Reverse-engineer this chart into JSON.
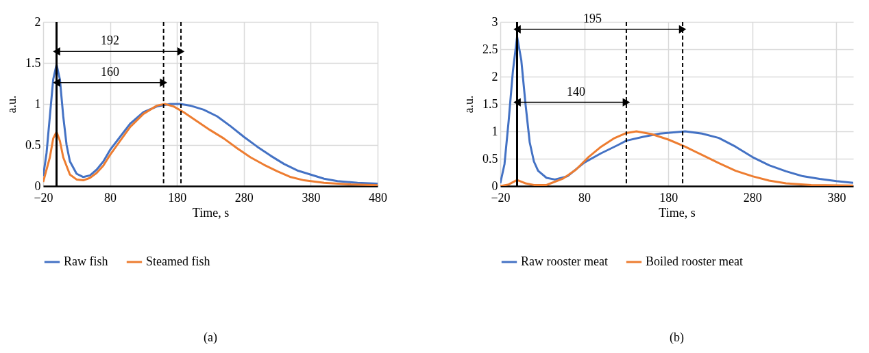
{
  "chart_data": [
    {
      "type": "line",
      "xlabel": "Time, s",
      "ylabel": "a.u.",
      "xlim": [
        -20,
        480
      ],
      "ylim": [
        0,
        2
      ],
      "xticks": [
        -20,
        80,
        180,
        280,
        380,
        480
      ],
      "yticks": [
        0,
        0.5,
        1,
        1.5,
        2
      ],
      "grid": true,
      "legend": "bottom",
      "series": [
        {
          "name": "Raw fish",
          "color": "#4472c4",
          "x": [
            -20,
            -15,
            -10,
            -5,
            0,
            5,
            10,
            15,
            20,
            30,
            40,
            50,
            60,
            70,
            80,
            95,
            110,
            130,
            150,
            170,
            185,
            200,
            220,
            240,
            260,
            280,
            300,
            320,
            340,
            360,
            380,
            400,
            420,
            450,
            480
          ],
          "values": [
            0.12,
            0.4,
            0.85,
            1.3,
            1.48,
            1.3,
            0.85,
            0.5,
            0.3,
            0.15,
            0.11,
            0.13,
            0.2,
            0.3,
            0.44,
            0.6,
            0.76,
            0.9,
            0.97,
            1.0,
            1.0,
            0.98,
            0.93,
            0.85,
            0.73,
            0.6,
            0.48,
            0.37,
            0.27,
            0.19,
            0.14,
            0.09,
            0.06,
            0.04,
            0.03
          ]
        },
        {
          "name": "Steamed fish",
          "color": "#ed7d31",
          "x": [
            -20,
            -10,
            -5,
            0,
            5,
            10,
            20,
            30,
            40,
            50,
            60,
            70,
            80,
            95,
            110,
            130,
            150,
            162,
            175,
            190,
            210,
            230,
            250,
            270,
            290,
            310,
            330,
            350,
            370,
            400,
            440,
            480
          ],
          "values": [
            0.05,
            0.35,
            0.58,
            0.66,
            0.55,
            0.35,
            0.14,
            0.08,
            0.07,
            0.1,
            0.16,
            0.25,
            0.38,
            0.55,
            0.72,
            0.88,
            0.98,
            1.0,
            0.97,
            0.9,
            0.79,
            0.68,
            0.58,
            0.46,
            0.35,
            0.26,
            0.18,
            0.11,
            0.07,
            0.04,
            0.02,
            0.01
          ]
        }
      ],
      "ref_lines": [
        {
          "axis": "x",
          "value": 0,
          "color": "#000000",
          "line_style": "solid"
        },
        {
          "axis": "x",
          "value": 186,
          "color": "#000000",
          "line_style": "dashed"
        },
        {
          "axis": "x",
          "value": 160,
          "color": "#000000",
          "line_style": "dashed"
        }
      ],
      "annotations": [
        "192",
        "160",
        "(a)"
      ]
    },
    {
      "type": "line",
      "xlabel": "Time, s",
      "ylabel": "a.u.",
      "xlim": [
        -20,
        400
      ],
      "ylim": [
        0,
        3
      ],
      "xticks": [
        -20,
        80,
        180,
        280,
        380
      ],
      "yticks": [
        0,
        0.5,
        1,
        1.5,
        2,
        2.5,
        3
      ],
      "grid": true,
      "legend": "bottom",
      "series": [
        {
          "name": "Raw rooster meat",
          "color": "#4472c4",
          "x": [
            -20,
            -15,
            -10,
            -5,
            0,
            5,
            10,
            15,
            20,
            25,
            35,
            45,
            60,
            80,
            100,
            120,
            130,
            150,
            170,
            200,
            220,
            240,
            260,
            280,
            300,
            320,
            340,
            360,
            380,
            400
          ],
          "values": [
            0.05,
            0.4,
            1.2,
            2.1,
            2.73,
            2.3,
            1.5,
            0.8,
            0.45,
            0.28,
            0.15,
            0.12,
            0.18,
            0.43,
            0.6,
            0.75,
            0.83,
            0.9,
            0.96,
            1.0,
            0.96,
            0.88,
            0.72,
            0.53,
            0.38,
            0.27,
            0.18,
            0.13,
            0.09,
            0.06
          ]
        },
        {
          "name": "Boiled rooster meat",
          "color": "#ed7d31",
          "x": [
            -20,
            -10,
            0,
            10,
            20,
            35,
            40,
            55,
            70,
            85,
            100,
            115,
            130,
            142,
            160,
            180,
            200,
            220,
            240,
            260,
            280,
            300,
            320,
            350,
            400
          ],
          "values": [
            0.0,
            0.03,
            0.11,
            0.05,
            0.02,
            0.02,
            0.05,
            0.14,
            0.3,
            0.53,
            0.72,
            0.87,
            0.97,
            1.0,
            0.95,
            0.85,
            0.72,
            0.57,
            0.42,
            0.28,
            0.18,
            0.1,
            0.05,
            0.02,
            0.01
          ]
        }
      ],
      "ref_lines": [
        {
          "axis": "x",
          "value": 0,
          "color": "#000000",
          "line_style": "solid"
        },
        {
          "axis": "x",
          "value": 197,
          "color": "#000000",
          "line_style": "dashed"
        },
        {
          "axis": "x",
          "value": 130,
          "color": "#000000",
          "line_style": "dashed"
        }
      ],
      "annotations": [
        "195",
        "140",
        "(b)"
      ]
    }
  ]
}
